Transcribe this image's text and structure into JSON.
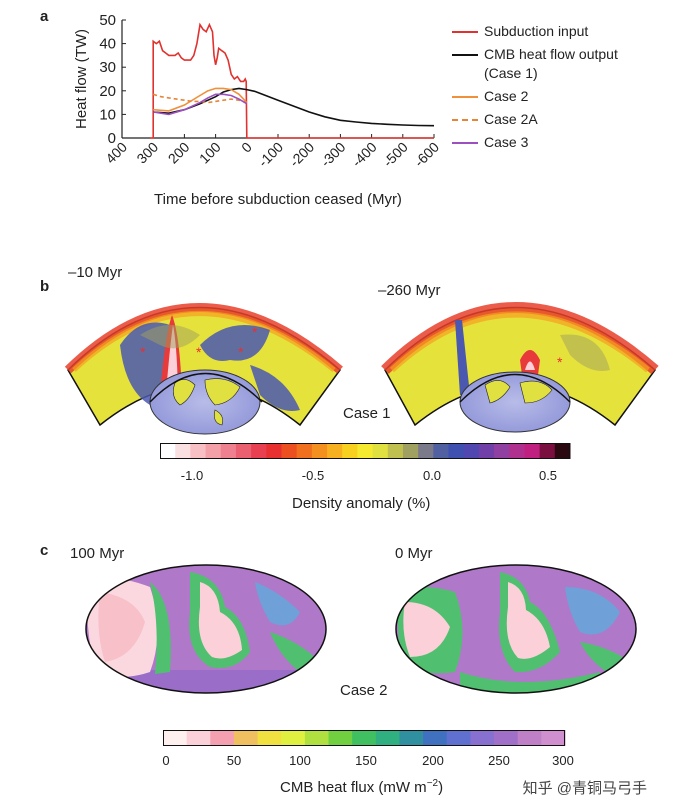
{
  "panel_a": {
    "letter": "a",
    "legend": [
      {
        "label": "Subduction input",
        "color": "#e0322e",
        "style": "solid"
      },
      {
        "label": "CMB heat flow output",
        "label2": "(Case 1)",
        "color": "#111111",
        "style": "solid"
      },
      {
        "label": "Case 2",
        "color": "#f0903a",
        "style": "solid"
      },
      {
        "label": "Case 2A",
        "color": "#e8843a",
        "style": "dashed"
      },
      {
        "label": "Case 3",
        "color": "#9c4fbf",
        "style": "solid"
      }
    ],
    "chart_data": {
      "type": "line",
      "xlabel": "Time before subduction ceased (Myr)",
      "ylabel": "Heat flow (TW)",
      "xlim": [
        400,
        -600
      ],
      "ylim": [
        0,
        50
      ],
      "xticks": [
        "400",
        "300",
        "200",
        "100",
        "0",
        "-100",
        "-200",
        "-300",
        "-400",
        "-500",
        "-600"
      ],
      "yticks": [
        "0",
        "10",
        "20",
        "30",
        "40",
        "50"
      ],
      "series": [
        {
          "name": "Subduction input",
          "color": "#e0322e",
          "x": [
            310,
            300,
            300,
            290,
            280,
            270,
            260,
            250,
            240,
            230,
            220,
            210,
            200,
            190,
            180,
            170,
            160,
            150,
            140,
            130,
            120,
            110,
            105,
            100,
            95,
            90,
            80,
            70,
            60,
            50,
            40,
            30,
            20,
            10,
            5,
            2,
            0,
            0,
            -100,
            -200,
            -300,
            -400,
            -500,
            -600
          ],
          "y": [
            0,
            0,
            41,
            40,
            41,
            37,
            36,
            35,
            35,
            35,
            36,
            34,
            33,
            33,
            33,
            35,
            40,
            48,
            46,
            45,
            48,
            45,
            35,
            31,
            34,
            38,
            37,
            36,
            33,
            27,
            25,
            26,
            24,
            24,
            25,
            24,
            0,
            0,
            0,
            0,
            0,
            0,
            0,
            0
          ]
        },
        {
          "name": "CMB heat flow output (Case 1)",
          "color": "#111111",
          "x": [
            300,
            250,
            200,
            150,
            100,
            75,
            50,
            25,
            0,
            -25,
            -50,
            -100,
            -150,
            -200,
            -250,
            -300,
            -350,
            -400,
            -450,
            -500,
            -550,
            -600
          ],
          "y": [
            11,
            10.5,
            12,
            14.5,
            17.5,
            19.5,
            20.5,
            21,
            20.5,
            19.8,
            18.5,
            16,
            13.5,
            11,
            9,
            7.5,
            6.8,
            6.2,
            5.8,
            5.5,
            5.3,
            5.2
          ]
        },
        {
          "name": "Case 2",
          "color": "#f0903a",
          "x": [
            300,
            250,
            200,
            150,
            125,
            100,
            75,
            50,
            25,
            0
          ],
          "y": [
            12,
            11.5,
            14,
            18,
            20,
            21,
            21,
            20.5,
            18.5,
            15
          ]
        },
        {
          "name": "Case 2A",
          "color": "#e8843a",
          "x": [
            300,
            275,
            250,
            225,
            200,
            175,
            150,
            125,
            100,
            75,
            50,
            25,
            0
          ],
          "y": [
            18.5,
            17.5,
            17,
            16.5,
            16,
            15.5,
            15.5,
            15,
            15.5,
            16,
            16.5,
            16,
            15
          ]
        },
        {
          "name": "Case 3",
          "color": "#9c4fbf",
          "x": [
            300,
            250,
            200,
            150,
            125,
            100,
            75,
            50,
            25,
            0
          ],
          "y": [
            11,
            10,
            12,
            15,
            17,
            18.5,
            18.5,
            18,
            16.5,
            14.5
          ]
        }
      ]
    }
  },
  "panel_b": {
    "letter": "b",
    "left_label": "–10 Myr",
    "right_label": "–260 Myr",
    "case_label": "Case 1",
    "colorbar": {
      "ticks": [
        "-1.0",
        "-0.5",
        "0.0",
        "0.5"
      ],
      "label": "Density anomaly (%)",
      "colors": [
        "#ffffff",
        "#fbe0e2",
        "#f7c0c4",
        "#f3a0a8",
        "#ef8090",
        "#eb6070",
        "#e84050",
        "#e83030",
        "#ec5020",
        "#f07020",
        "#f39020",
        "#f6b020",
        "#f8d020",
        "#f5ea30",
        "#e0e040",
        "#c0c050",
        "#a0a060",
        "#7a7a8a",
        "#5060a0",
        "#4050b0",
        "#5048b0",
        "#7040a8",
        "#9040a0",
        "#b03090",
        "#c02080",
        "#7a1040",
        "#2a0a10"
      ]
    }
  },
  "panel_c": {
    "letter": "c",
    "left_label": "100 Myr",
    "right_label": "0 Myr",
    "case_label": "Case 2",
    "colorbar": {
      "ticks": [
        "0",
        "50",
        "100",
        "150",
        "200",
        "250",
        "300"
      ],
      "label_main": "CMB heat flux (mW m",
      "label_sup": "−2",
      "label_end": ")",
      "colors": [
        "#fff0f0",
        "#fbd0d8",
        "#f5a0b0",
        "#f0c060",
        "#f0e040",
        "#e0f040",
        "#b0e040",
        "#70d040",
        "#40c060",
        "#30b080",
        "#3090a0",
        "#4070c0",
        "#6070d0",
        "#8870d0",
        "#a070c8",
        "#c080c8",
        "#d090d0"
      ]
    }
  },
  "watermark": "知乎 @青铜马弓手"
}
